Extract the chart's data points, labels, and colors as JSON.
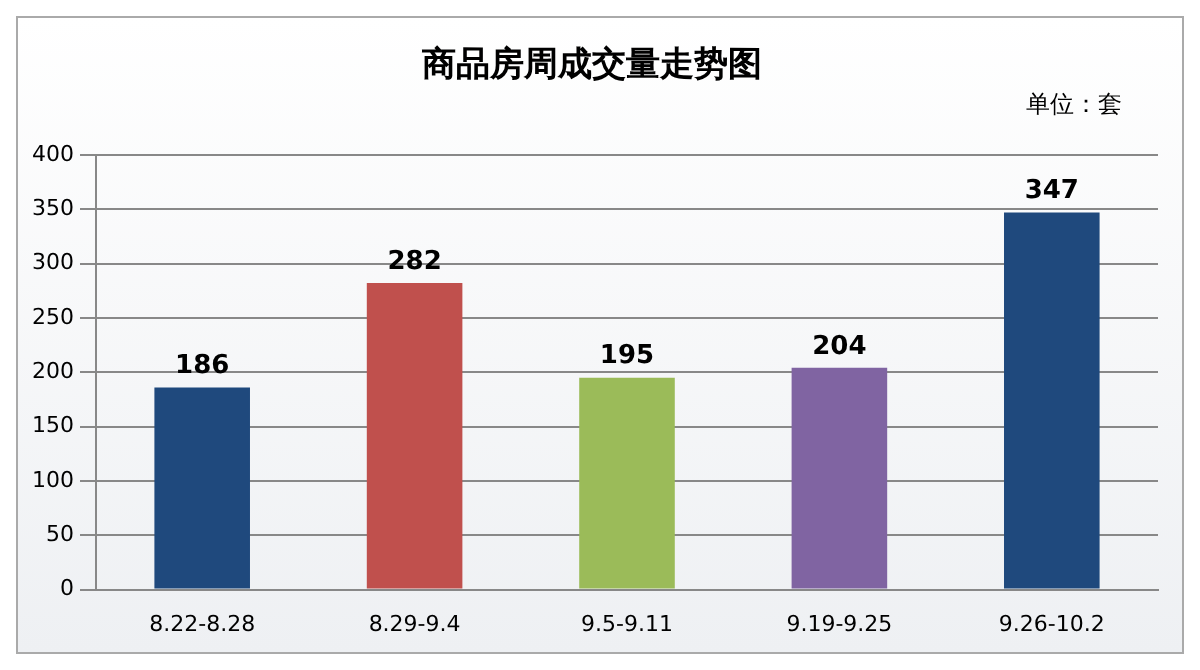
{
  "chart_data": {
    "type": "bar",
    "title": "商品房周成交量走势图",
    "annotations": [
      "单位：套"
    ],
    "categories": [
      "8.22-8.28",
      "8.29-9.4",
      "9.5-9.11",
      "9.19-9.25",
      "9.26-10.2"
    ],
    "values": [
      186,
      282,
      195,
      204,
      347
    ],
    "colors": [
      "#1f497d",
      "#c0504d",
      "#9bbb59",
      "#8064a2",
      "#1f497d"
    ],
    "ylim": [
      0,
      400
    ],
    "yticks": [
      0,
      50,
      100,
      150,
      200,
      250,
      300,
      350,
      400
    ],
    "grid": "y",
    "legend": false,
    "data_labels": true
  }
}
